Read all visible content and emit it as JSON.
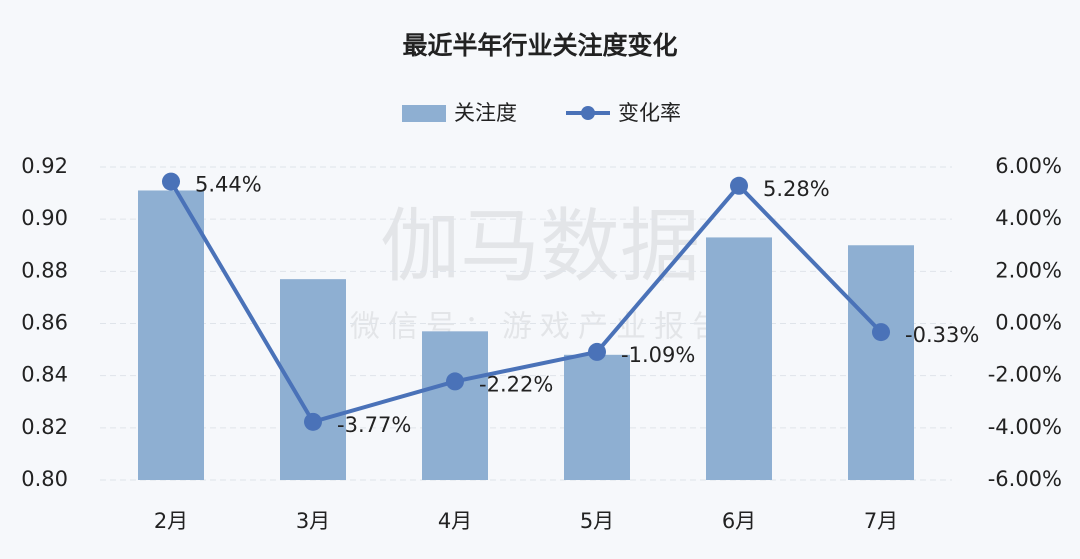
{
  "chart_data": {
    "type": "bar",
    "title": "最近半年行业关注度变化",
    "watermark": [
      "伽马数据",
      "微信号：游戏产业报告"
    ],
    "categories": [
      "2月",
      "3月",
      "4月",
      "5月",
      "6月",
      "7月"
    ],
    "series": [
      {
        "name": "关注度",
        "type": "bar",
        "color": "#8eafd2",
        "values": [
          0.911,
          0.877,
          0.857,
          0.848,
          0.893,
          0.89
        ]
      },
      {
        "name": "变化率",
        "type": "line",
        "axis": "y2",
        "color": "#4a72b8",
        "values": [
          5.44,
          -3.77,
          -2.22,
          -1.09,
          5.28,
          -0.33
        ],
        "value_labels": [
          "5.44%",
          "-3.77%",
          "-2.22%",
          "-1.09%",
          "5.28%",
          "-0.33%"
        ]
      }
    ],
    "ylim": [
      0.8,
      0.92
    ],
    "yticks": [
      {
        "value": 0.8,
        "label": "0.80"
      },
      0.82,
      0.84,
      0.86,
      0.88,
      {
        "value": 0.9,
        "label": "0.90"
      },
      0.92
    ],
    "y2lim": [
      -6,
      6
    ],
    "y2ticks": [
      {
        "value": -6,
        "label": "-6.00%"
      },
      {
        "value": -4,
        "label": "-4.00%"
      },
      {
        "value": -2,
        "label": "-2.00%"
      },
      {
        "value": 0,
        "label": "0.00%"
      },
      {
        "value": 2,
        "label": "2.00%"
      },
      {
        "value": 4,
        "label": "4.00%"
      },
      {
        "value": 6,
        "label": "6.00%"
      }
    ],
    "grid": true,
    "legend": "top"
  }
}
